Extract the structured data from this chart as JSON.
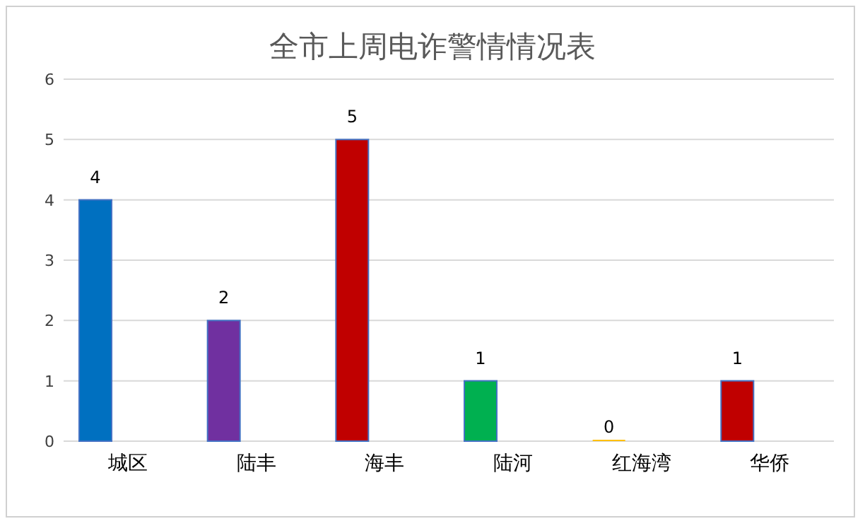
{
  "chart_data": {
    "type": "bar",
    "title": "全市上周电诈警情情况表",
    "categories": [
      "城区",
      "陆丰",
      "海丰",
      "陆河",
      "红海湾",
      "华侨"
    ],
    "values": [
      4,
      2,
      5,
      1,
      0,
      1
    ],
    "colors": [
      "#0070c0",
      "#7030a0",
      "#c00000",
      "#00b050",
      "#ffc000",
      "#c00000"
    ],
    "ylim": [
      0,
      6
    ],
    "yticks": [
      0,
      1,
      2,
      3,
      4,
      5,
      6
    ],
    "grid": "y",
    "data_labels": true
  }
}
